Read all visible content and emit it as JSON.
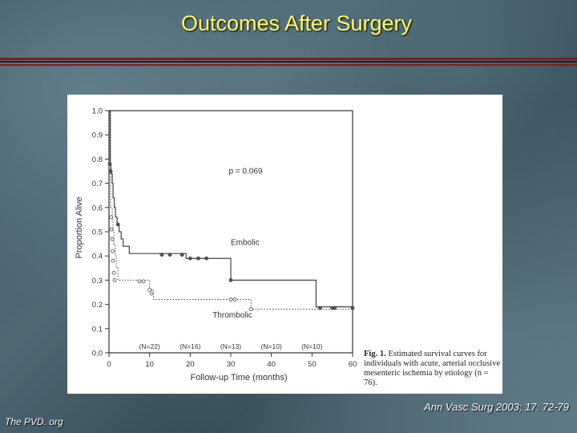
{
  "slide": {
    "title": "Outcomes After Surgery",
    "citation": "Ann Vasc Surg 2003; 17: 72-79",
    "footer": "The PVD. org"
  },
  "caption": {
    "label": "Fig. 1.",
    "text": "Estimated survival curves for individuals with acute, arterial occlusive mesenteric ischemia by etiology (n = 76)."
  },
  "chart_data": {
    "type": "line",
    "step": true,
    "title": "",
    "xlabel": "Follow-up Time (months)",
    "ylabel": "Proportion Alive",
    "xlim": [
      0,
      60
    ],
    "ylim": [
      0,
      1.0
    ],
    "xticks": [
      0,
      10,
      20,
      30,
      40,
      50,
      60
    ],
    "xtick_labels": [
      "0",
      "10",
      "20",
      "30",
      "40",
      "50",
      "60"
    ],
    "yticks": [
      0,
      0.1,
      0.2,
      0.3,
      0.4,
      0.5,
      0.6,
      0.7,
      0.8,
      0.9,
      1.0
    ],
    "ytick_labels": [
      "0.0",
      "0.1",
      "0.2",
      "0.3",
      "0.4",
      "0.5",
      "0.6",
      "0.7",
      "0.8",
      "0.9",
      "1.0"
    ],
    "annotation": "p = 0.069",
    "at_risk": [
      {
        "x": 10,
        "label": "(N=22)"
      },
      {
        "x": 20,
        "label": "(N=16)"
      },
      {
        "x": 30,
        "label": "(N=13)"
      },
      {
        "x": 40,
        "label": "(N=10)"
      },
      {
        "x": 50,
        "label": "(N=10)"
      }
    ],
    "series": [
      {
        "name": "Embolic",
        "style": "solid",
        "label_pos": [
          30,
          0.445
        ],
        "steps": [
          [
            0,
            1.0
          ],
          [
            0.3,
            0.78
          ],
          [
            0.5,
            0.74
          ],
          [
            0.8,
            0.7
          ],
          [
            1,
            0.64
          ],
          [
            1.3,
            0.6
          ],
          [
            1.6,
            0.56
          ],
          [
            2,
            0.53
          ],
          [
            2.5,
            0.5
          ],
          [
            3,
            0.47
          ],
          [
            3.5,
            0.44
          ],
          [
            5,
            0.41
          ],
          [
            19,
            0.39
          ],
          [
            30,
            0.3
          ],
          [
            51,
            0.19
          ],
          [
            60,
            0.19
          ]
        ],
        "censored": [
          [
            0.2,
            0.78
          ],
          [
            0.4,
            0.75
          ],
          [
            2.2,
            0.53
          ],
          [
            13,
            0.405
          ],
          [
            15,
            0.405
          ],
          [
            18,
            0.405
          ],
          [
            20,
            0.39
          ],
          [
            22,
            0.39
          ],
          [
            24,
            0.39
          ],
          [
            30,
            0.3
          ],
          [
            52,
            0.185
          ],
          [
            55,
            0.185
          ],
          [
            55.6,
            0.185
          ],
          [
            60,
            0.185
          ]
        ]
      },
      {
        "name": "Thrombolic",
        "style": "dotted",
        "label_pos": [
          25.5,
          0.145
        ],
        "steps": [
          [
            0,
            1.0
          ],
          [
            0.4,
            0.6
          ],
          [
            0.8,
            0.55
          ],
          [
            1,
            0.5
          ],
          [
            1.2,
            0.45
          ],
          [
            1.5,
            0.4
          ],
          [
            1.8,
            0.35
          ],
          [
            2.2,
            0.3
          ],
          [
            10,
            0.26
          ],
          [
            11,
            0.22
          ],
          [
            35,
            0.18
          ],
          [
            60,
            0.18
          ]
        ],
        "censored": [
          [
            0.5,
            0.56
          ],
          [
            0.6,
            0.51
          ],
          [
            0.8,
            0.47
          ],
          [
            0.9,
            0.42
          ],
          [
            1,
            0.38
          ],
          [
            1.2,
            0.33
          ],
          [
            1.4,
            0.3
          ],
          [
            7.5,
            0.295
          ],
          [
            8.5,
            0.295
          ],
          [
            10,
            0.26
          ],
          [
            10.5,
            0.245
          ],
          [
            30,
            0.22
          ],
          [
            31,
            0.22
          ],
          [
            35,
            0.18
          ]
        ]
      }
    ]
  }
}
